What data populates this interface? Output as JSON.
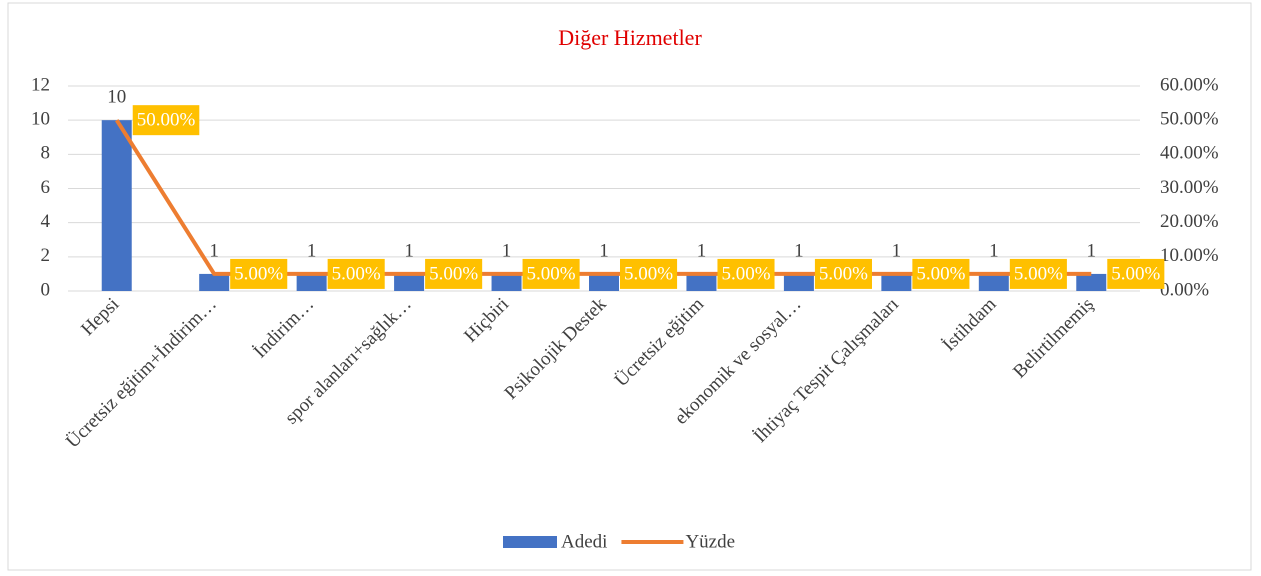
{
  "chart_data": {
    "type": "bar-line",
    "title": "Diğer Hizmetler",
    "categories": [
      "Hepsi",
      "Ücretsiz eğitim+İndirim…",
      "İndirim…",
      "spor alanları+sağlık…",
      "Hiçbiri",
      "Psikolojik Destek",
      "Ücretsiz eğitim",
      "ekonomik ve sosyal…",
      "İhtiyaç Tespit Çalışmaları",
      "İstihdam",
      "Belirtilmemiş"
    ],
    "series": [
      {
        "name": "Adedi",
        "type": "bar",
        "color": "#4472c4",
        "values": [
          10,
          1,
          1,
          1,
          1,
          1,
          1,
          1,
          1,
          1,
          1
        ]
      },
      {
        "name": "Yüzde",
        "type": "line",
        "axis": "y2",
        "color": "#ed7d31",
        "values": [
          50,
          5,
          5,
          5,
          5,
          5,
          5,
          5,
          5,
          5,
          5
        ],
        "value_labels": [
          "50.00%",
          "5.00%",
          "5.00%",
          "5.00%",
          "5.00%",
          "5.00%",
          "5.00%",
          "5.00%",
          "5.00%",
          "5.00%",
          "5.00%"
        ],
        "label_color": "#ffc000"
      }
    ],
    "ylim": [
      0,
      12
    ],
    "yticks": [
      0,
      2,
      4,
      6,
      8,
      10,
      12
    ],
    "y2lim": [
      0,
      60
    ],
    "y2ticks": [
      {
        "value": 0,
        "label": "0.00%"
      },
      {
        "value": 10,
        "label": "10.00%"
      },
      {
        "value": 20,
        "label": "20.00%"
      },
      {
        "value": 30,
        "label": "30.00%"
      },
      {
        "value": 40,
        "label": "40.00%"
      },
      {
        "value": 50,
        "label": "50.00%"
      },
      {
        "value": 60,
        "label": "60.00%"
      }
    ],
    "grid": true,
    "legend": "bottom"
  }
}
